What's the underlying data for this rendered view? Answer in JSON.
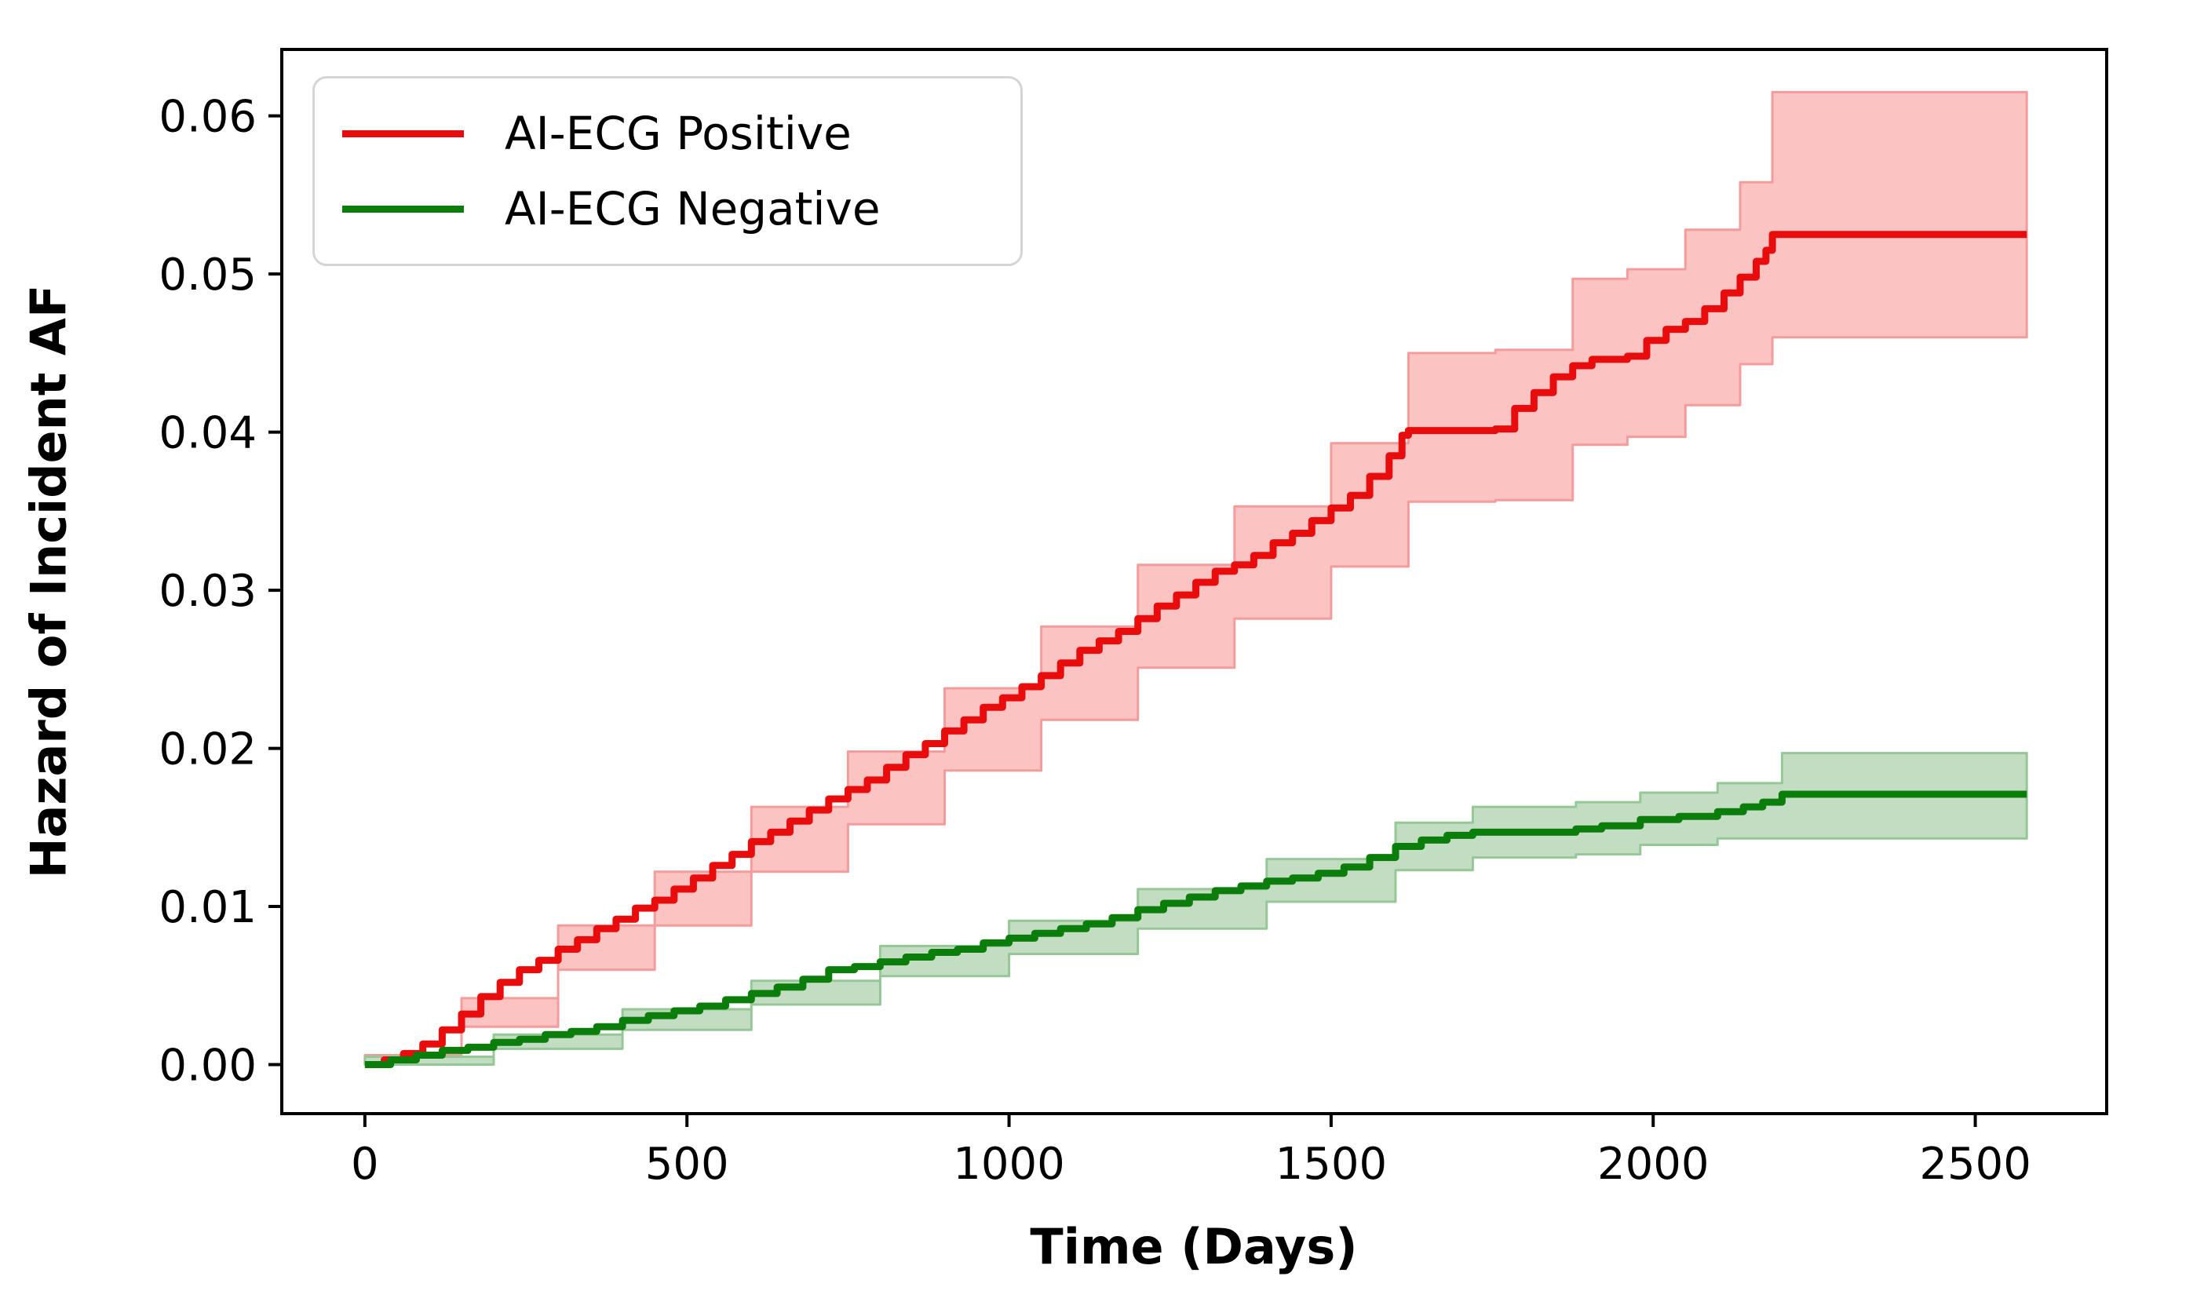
{
  "figure": {
    "xlabel": "Time (Days)",
    "ylabel": "Hazard of Incident AF",
    "background_color": "#ffffff",
    "spine_color": "#000000"
  },
  "legend": {
    "position": "upper left",
    "items": [
      {
        "label": "AI-ECG Positive",
        "color": "#e90c0c"
      },
      {
        "label": "AI-ECG Negative",
        "color": "#0b7d0b"
      }
    ]
  },
  "chart_data": {
    "type": "line",
    "title": "",
    "xlabel": "Time (Days)",
    "ylabel": "Hazard of Incident AF",
    "grid": false,
    "step": true,
    "legend_position": "upper left",
    "xlim": [
      -129,
      2704
    ],
    "ylim": [
      -0.0031,
      0.0642
    ],
    "x_ticks": [
      0,
      500,
      1000,
      1500,
      2000,
      2500
    ],
    "x_tick_labels": [
      "0",
      "500",
      "1000",
      "1500",
      "2000",
      "2500"
    ],
    "y_ticks": [
      0.0,
      0.01,
      0.02,
      0.03,
      0.04,
      0.05,
      0.06
    ],
    "y_tick_labels": [
      "0.00",
      "0.01",
      "0.02",
      "0.03",
      "0.04",
      "0.05",
      "0.06"
    ],
    "series": [
      {
        "name": "AI-ECG Positive",
        "color": "#e90c0c",
        "line_width": 9,
        "band_fill": "#fcc3c3",
        "band_edge": "#f49c9c",
        "x": [
          0,
          30,
          60,
          90,
          120,
          150,
          180,
          210,
          240,
          270,
          300,
          330,
          360,
          390,
          420,
          450,
          480,
          510,
          540,
          570,
          600,
          630,
          660,
          690,
          720,
          750,
          780,
          810,
          840,
          870,
          900,
          930,
          960,
          990,
          1020,
          1050,
          1080,
          1110,
          1140,
          1170,
          1200,
          1230,
          1260,
          1290,
          1320,
          1350,
          1380,
          1410,
          1440,
          1470,
          1500,
          1530,
          1560,
          1590,
          1610,
          1620,
          1755,
          1785,
          1815,
          1845,
          1875,
          1905,
          1960,
          1990,
          2020,
          2050,
          2080,
          2110,
          2135,
          2160,
          2175,
          2185,
          2580
        ],
        "y": [
          0,
          0.0003,
          0.0007,
          0.0013,
          0.0022,
          0.0032,
          0.0043,
          0.0052,
          0.006,
          0.0066,
          0.0073,
          0.0079,
          0.0086,
          0.0092,
          0.0099,
          0.0104,
          0.0111,
          0.0118,
          0.0126,
          0.0133,
          0.0141,
          0.0147,
          0.0154,
          0.0161,
          0.0168,
          0.0174,
          0.018,
          0.0188,
          0.0196,
          0.0203,
          0.0211,
          0.0218,
          0.0226,
          0.0232,
          0.0239,
          0.0246,
          0.0254,
          0.0262,
          0.0268,
          0.0274,
          0.0282,
          0.029,
          0.0297,
          0.0305,
          0.0312,
          0.0316,
          0.0322,
          0.033,
          0.0336,
          0.0344,
          0.0352,
          0.036,
          0.0372,
          0.0385,
          0.0398,
          0.0401,
          0.0402,
          0.0415,
          0.0425,
          0.0435,
          0.0442,
          0.0446,
          0.0448,
          0.0458,
          0.0465,
          0.047,
          0.0478,
          0.0488,
          0.0498,
          0.0508,
          0.0515,
          0.0525,
          0.0525
        ],
        "band": {
          "x": [
            0,
            150,
            300,
            450,
            600,
            750,
            900,
            1050,
            1200,
            1350,
            1500,
            1620,
            1755,
            1875,
            1960,
            2050,
            2135,
            2185,
            2580
          ],
          "upper": [
            0.0006,
            0.0042,
            0.0088,
            0.0122,
            0.0163,
            0.0198,
            0.0238,
            0.0277,
            0.0316,
            0.0353,
            0.0393,
            0.045,
            0.0452,
            0.0497,
            0.0503,
            0.0528,
            0.0558,
            0.0615,
            0.0615
          ],
          "lower": [
            0,
            0.0024,
            0.006,
            0.0088,
            0.0122,
            0.0152,
            0.0186,
            0.0218,
            0.0251,
            0.0282,
            0.0315,
            0.0356,
            0.0357,
            0.0392,
            0.0397,
            0.0417,
            0.0443,
            0.046,
            0.046
          ]
        }
      },
      {
        "name": "AI-ECG Negative",
        "color": "#0b7d0b",
        "line_width": 9,
        "band_fill": "#c3ddc3",
        "band_edge": "#96c796",
        "x": [
          0,
          40,
          80,
          120,
          160,
          200,
          240,
          280,
          320,
          360,
          400,
          440,
          480,
          520,
          560,
          600,
          640,
          680,
          720,
          760,
          800,
          840,
          880,
          920,
          960,
          1000,
          1040,
          1080,
          1120,
          1160,
          1200,
          1240,
          1280,
          1320,
          1360,
          1400,
          1440,
          1480,
          1520,
          1560,
          1600,
          1640,
          1680,
          1720,
          1880,
          1920,
          1980,
          2040,
          2100,
          2140,
          2170,
          2200,
          2580
        ],
        "y": [
          0,
          0.0003,
          0.0006,
          0.0009,
          0.0011,
          0.0014,
          0.0016,
          0.0019,
          0.0021,
          0.0024,
          0.0028,
          0.0031,
          0.0034,
          0.0037,
          0.0041,
          0.0045,
          0.0049,
          0.0054,
          0.006,
          0.0062,
          0.0065,
          0.0068,
          0.0071,
          0.0073,
          0.0077,
          0.008,
          0.0083,
          0.0086,
          0.0089,
          0.0093,
          0.0098,
          0.0102,
          0.0106,
          0.011,
          0.0113,
          0.0116,
          0.0118,
          0.0121,
          0.0125,
          0.0131,
          0.0138,
          0.0142,
          0.0145,
          0.0147,
          0.0149,
          0.0151,
          0.0155,
          0.0157,
          0.016,
          0.0163,
          0.0166,
          0.0171,
          0.0171
        ],
        "band": {
          "x": [
            0,
            200,
            400,
            600,
            800,
            1000,
            1200,
            1400,
            1600,
            1720,
            1880,
            1980,
            2100,
            2200,
            2580
          ],
          "upper": [
            0.0005,
            0.0019,
            0.0035,
            0.0053,
            0.0075,
            0.0091,
            0.0111,
            0.013,
            0.0153,
            0.0163,
            0.0166,
            0.0172,
            0.0178,
            0.0197,
            0.0197
          ],
          "lower": [
            0,
            0.001,
            0.0022,
            0.0038,
            0.0056,
            0.007,
            0.0086,
            0.0103,
            0.0123,
            0.0131,
            0.0133,
            0.0139,
            0.0143,
            0.0143,
            0.0143
          ]
        }
      }
    ]
  }
}
